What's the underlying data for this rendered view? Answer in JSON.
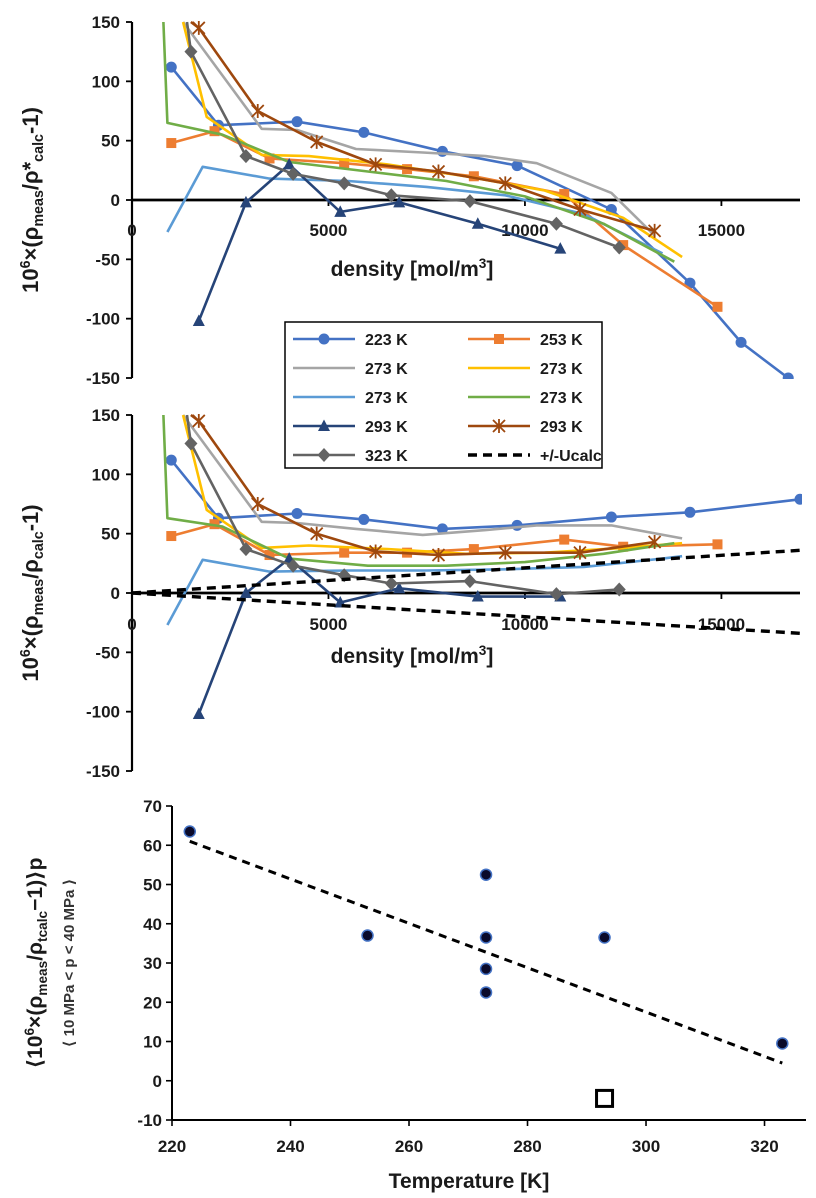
{
  "chart_data": [
    {
      "type": "line",
      "ylabel": "10^6×(ρmeas/ρ*calc-1)",
      "xlabel": "density    [mol/m3]",
      "xlim": [
        0,
        17000
      ],
      "ylim": [
        -150,
        150
      ],
      "xticks": [
        0,
        5000,
        10000,
        15000
      ],
      "yticks": [
        -150,
        -100,
        -50,
        0,
        50,
        100,
        150
      ],
      "grid": false,
      "series": [
        {
          "name": "223 K",
          "color": "#4472C4",
          "marker": "circle",
          "x": [
            1000,
            2200,
            4200,
            5900,
            7900,
            9800,
            12200,
            14200,
            15500,
            16700
          ],
          "y": [
            112,
            63,
            66,
            57,
            41,
            29,
            -8,
            -70,
            -120,
            -150
          ]
        },
        {
          "name": "253 K",
          "color": "#ED7D31",
          "marker": "square",
          "x": [
            1000,
            2100,
            3500,
            5400,
            7000,
            8700,
            11000,
            12500,
            14900
          ],
          "y": [
            48,
            58,
            35,
            31,
            26,
            20,
            5,
            -38,
            -90
          ]
        },
        {
          "name": "273 K",
          "color": "#A5A5A5",
          "marker": "none",
          "x": [
            1300,
            3300,
            4200,
            5700,
            7400,
            9000,
            10300,
            12200,
            13300
          ],
          "y": [
            150,
            60,
            59,
            43,
            40,
            37,
            31,
            6,
            -30
          ]
        },
        {
          "name": "273 K",
          "color": "#FFC000",
          "marker": "none",
          "x": [
            1300,
            1900,
            3300,
            4500,
            6500,
            8500,
            10500,
            12500,
            14000
          ],
          "y": [
            150,
            70,
            38,
            37,
            30,
            20,
            8,
            -15,
            -48
          ]
        },
        {
          "name": "273 K",
          "color": "#5B9BD5",
          "marker": "none",
          "x": [
            900,
            1800,
            3500,
            5500,
            7500,
            9500,
            11500,
            13500
          ],
          "y": [
            -27,
            28,
            18,
            16,
            11,
            4,
            -12,
            -45
          ]
        },
        {
          "name": "273 K",
          "color": "#70AD47",
          "marker": "none",
          "x": [
            800,
            900,
            2300,
            4000,
            6000,
            8000,
            10000,
            12000,
            13800
          ],
          "y": [
            150,
            65,
            55,
            32,
            24,
            16,
            3,
            -20,
            -52
          ]
        },
        {
          "name": "293 K",
          "color": "#264478",
          "marker": "triangle",
          "x": [
            1700,
            2900,
            4000,
            5300,
            6800,
            8800,
            10900
          ],
          "y": [
            -102,
            -2,
            30,
            -10,
            -2,
            -20,
            -41
          ]
        },
        {
          "name": "293 K",
          "color": "#9E480E",
          "marker": "star",
          "x": [
            1500,
            1700,
            3200,
            4700,
            6200,
            7800,
            9500,
            11400,
            13300
          ],
          "y": [
            150,
            145,
            75,
            49,
            30,
            24,
            14,
            -8,
            -26
          ]
        },
        {
          "name": "323 K",
          "color": "#636363",
          "marker": "diamond",
          "x": [
            1400,
            1500,
            2900,
            4100,
            5400,
            6600,
            8600,
            10800,
            12400
          ],
          "y": [
            150,
            125,
            37,
            22,
            14,
            4,
            -1,
            -20,
            -40
          ]
        }
      ]
    },
    {
      "type": "line",
      "ylabel": "10^6×(ρmeas/ρcalc-1)",
      "xlabel": "density    [mol/m3]",
      "xlim": [
        0,
        17000
      ],
      "ylim": [
        -150,
        150
      ],
      "xticks": [
        0,
        5000,
        10000,
        15000
      ],
      "yticks": [
        -150,
        -100,
        -50,
        0,
        50,
        100,
        150
      ],
      "grid": false,
      "series": [
        {
          "name": "223 K",
          "color": "#4472C4",
          "marker": "circle",
          "x": [
            1000,
            2200,
            4200,
            5900,
            7900,
            9800,
            12200,
            14200,
            17000
          ],
          "y": [
            112,
            63,
            67,
            62,
            54,
            57,
            64,
            68,
            79
          ]
        },
        {
          "name": "253 K",
          "color": "#ED7D31",
          "marker": "square",
          "x": [
            1000,
            2100,
            3500,
            5400,
            7000,
            8700,
            11000,
            12500,
            14900
          ],
          "y": [
            48,
            58,
            32,
            34,
            34,
            37,
            45,
            39,
            41
          ]
        },
        {
          "name": "273 K",
          "color": "#A5A5A5",
          "marker": "none",
          "x": [
            1300,
            3300,
            4200,
            5700,
            7400,
            9000,
            10300,
            12200,
            14000
          ],
          "y": [
            150,
            60,
            59,
            54,
            49,
            53,
            57,
            57,
            46
          ]
        },
        {
          "name": "273 K",
          "color": "#FFC000",
          "marker": "none",
          "x": [
            1300,
            1900,
            3300,
            4500,
            6500,
            8500,
            10500,
            12500,
            14000
          ],
          "y": [
            150,
            70,
            38,
            40,
            37,
            33,
            34,
            38,
            42
          ]
        },
        {
          "name": "273 K",
          "color": "#5B9BD5",
          "marker": "none",
          "x": [
            900,
            1800,
            3500,
            5500,
            7500,
            9500,
            11500,
            13500,
            14000
          ],
          "y": [
            -27,
            28,
            18,
            19,
            19,
            20,
            22,
            29,
            31
          ]
        },
        {
          "name": "273 K",
          "color": "#70AD47",
          "marker": "none",
          "x": [
            800,
            900,
            2300,
            4000,
            6000,
            8000,
            10000,
            12000,
            13800
          ],
          "y": [
            150,
            63,
            56,
            29,
            23,
            23,
            26,
            33,
            42
          ]
        },
        {
          "name": "293 K",
          "color": "#264478",
          "marker": "triangle",
          "x": [
            1700,
            2900,
            4000,
            5300,
            6800,
            8800,
            10900
          ],
          "y": [
            -102,
            0,
            29,
            -8,
            4,
            -3,
            -3
          ]
        },
        {
          "name": "293 K",
          "color": "#9E480E",
          "marker": "star",
          "x": [
            1500,
            1700,
            3200,
            4700,
            6200,
            7800,
            9500,
            11400,
            13300
          ],
          "y": [
            150,
            145,
            75,
            50,
            35,
            32,
            34,
            34,
            43
          ]
        },
        {
          "name": "323 K",
          "color": "#636363",
          "marker": "diamond",
          "x": [
            1400,
            1500,
            2900,
            4100,
            5400,
            6600,
            8600,
            10800,
            12400
          ],
          "y": [
            150,
            126,
            37,
            23,
            15,
            8,
            10,
            -1,
            3
          ]
        },
        {
          "name": "+/-Ucalc",
          "color": "#000000",
          "marker": "none",
          "dash": true,
          "x": [
            0,
            17000
          ],
          "y": [
            0,
            36
          ]
        },
        {
          "name": "+/-Ucalc",
          "color": "#000000",
          "marker": "none",
          "dash": true,
          "legend": false,
          "x": [
            0,
            17000
          ],
          "y": [
            0,
            -34
          ]
        }
      ]
    },
    {
      "type": "scatter",
      "ylabel": "⟨10^6×(ρmeas/ρtcalc−1)⟩p",
      "ylabel2": "⟨ 10 MPa < p < 40 MPa ⟩",
      "xlabel": "Temperature    [K]",
      "xlim": [
        220,
        327
      ],
      "ylim": [
        -10,
        70
      ],
      "xticks": [
        220,
        240,
        260,
        280,
        300,
        320
      ],
      "yticks": [
        -10,
        0,
        10,
        20,
        30,
        40,
        50,
        60,
        70
      ],
      "grid": false,
      "points": [
        {
          "x": 223,
          "y": 63.5
        },
        {
          "x": 253,
          "y": 37
        },
        {
          "x": 273,
          "y": 52.5
        },
        {
          "x": 273,
          "y": 36.5
        },
        {
          "x": 273,
          "y": 28.5
        },
        {
          "x": 273,
          "y": 22.5
        },
        {
          "x": 293,
          "y": 36.5
        },
        {
          "x": 323,
          "y": 9.5
        }
      ],
      "outlier": {
        "x": 293,
        "y": -4.5
      },
      "trendline": {
        "x": [
          223,
          323
        ],
        "y": [
          61,
          4.5
        ]
      }
    }
  ]
}
